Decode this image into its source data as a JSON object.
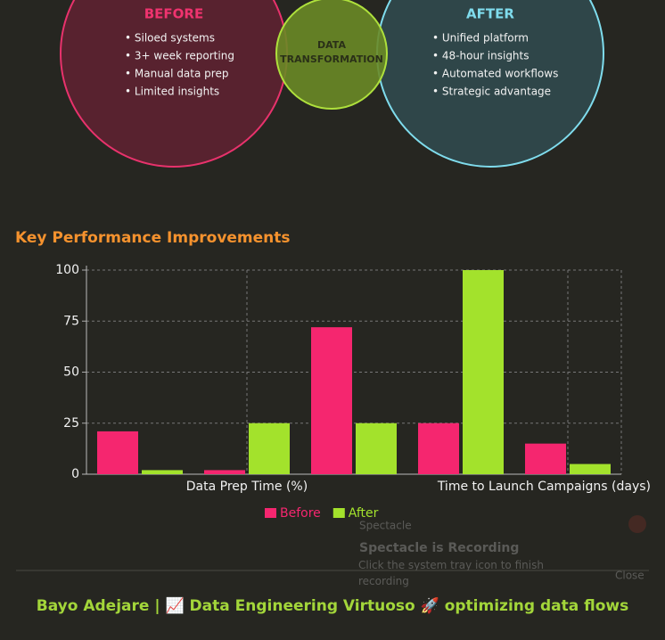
{
  "venn": {
    "before": {
      "title": "BEFORE",
      "items": [
        "• Siloed systems",
        "• 3+ week reporting",
        "• Manual data prep",
        "• Limited insights"
      ]
    },
    "middle": {
      "lines": [
        "DATA",
        "TRANSFORMATION"
      ]
    },
    "after": {
      "title": "AFTER",
      "items": [
        "• Unified platform",
        "• 48-hour insights",
        "• Automated workflows",
        "• Strategic advantage"
      ]
    }
  },
  "chart_data": {
    "type": "bar",
    "title": "Key Performance Improvements",
    "categories": [
      null,
      "Data Prep Time (%)",
      null,
      null,
      "Time to Launch Campaigns (days)"
    ],
    "series": [
      {
        "name": "Before",
        "color": "#f5266f",
        "values": [
          21,
          2,
          72,
          25,
          15
        ]
      },
      {
        "name": "After",
        "color": "#a3e22c",
        "values": [
          2,
          25,
          25,
          100,
          5
        ]
      }
    ],
    "ylim": [
      0,
      100
    ],
    "yticks": [
      0,
      25,
      50,
      75,
      100
    ],
    "grid": true,
    "legend": "bottom"
  },
  "notification": {
    "app": "Spectacle",
    "title": "Spectacle is Recording",
    "body": "Click the system tray icon to finish recording",
    "action": "Close"
  },
  "footer": "Bayo Adejare | 📈 Data Engineering Virtuoso 🚀 optimizing data flows"
}
